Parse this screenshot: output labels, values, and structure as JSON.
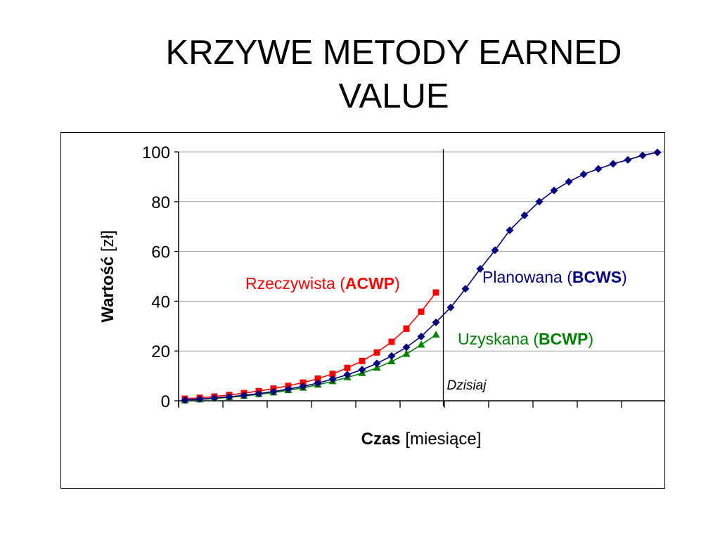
{
  "slide": {
    "title_line1": "KRZYWE METODY EARNED",
    "title_line2": "VALUE"
  },
  "chart_data": {
    "type": "line",
    "xlabel_bold": "Czas",
    "xlabel_rest": " [miesiące]",
    "ylabel_bold": "Wartość",
    "ylabel_rest": " [zł]",
    "ylim": [
      0,
      100
    ],
    "yticks": [
      "0",
      "20",
      "40",
      "60",
      "80",
      "100"
    ],
    "grid": true,
    "x_points": 33,
    "today_index": 17.5,
    "today_label": "Dzisiaj",
    "series": [
      {
        "key": "bcws",
        "label_prefix": "Planowana (",
        "label_bold": "BCWS",
        "label_suffix": ")",
        "color": "#000080",
        "marker": "diamond",
        "values": [
          0.3,
          0.7,
          1.1,
          1.6,
          2.2,
          2.9,
          3.7,
          4.7,
          5.8,
          7.1,
          8.7,
          10.5,
          12.5,
          15.0,
          18.0,
          21.5,
          25.8,
          31.5,
          37.5,
          45.0,
          53.0,
          60.5,
          68.5,
          74.5,
          80.0,
          84.5,
          88.0,
          91.0,
          93.2,
          95.2,
          96.8,
          98.6,
          99.8
        ]
      },
      {
        "key": "acwp",
        "label_prefix": "Rzeczywista (",
        "label_bold": "ACWP",
        "label_suffix": ")",
        "color": "#ff0000",
        "marker": "square",
        "values": [
          0.8,
          1.2,
          1.7,
          2.3,
          3.1,
          3.9,
          4.9,
          6.0,
          7.3,
          8.9,
          10.8,
          13.2,
          16.0,
          19.4,
          23.7,
          29.0,
          35.8,
          43.5
        ]
      },
      {
        "key": "bcwp",
        "label_prefix": "Uzyskana (",
        "label_bold": "BCWP",
        "label_suffix": ")",
        "color": "#008000",
        "marker": "triangle",
        "values": [
          0.1,
          0.5,
          0.9,
          1.4,
          1.9,
          2.6,
          3.3,
          4.2,
          5.2,
          6.4,
          7.8,
          9.4,
          11.1,
          13.2,
          15.8,
          18.8,
          22.5,
          26.5
        ]
      }
    ]
  }
}
